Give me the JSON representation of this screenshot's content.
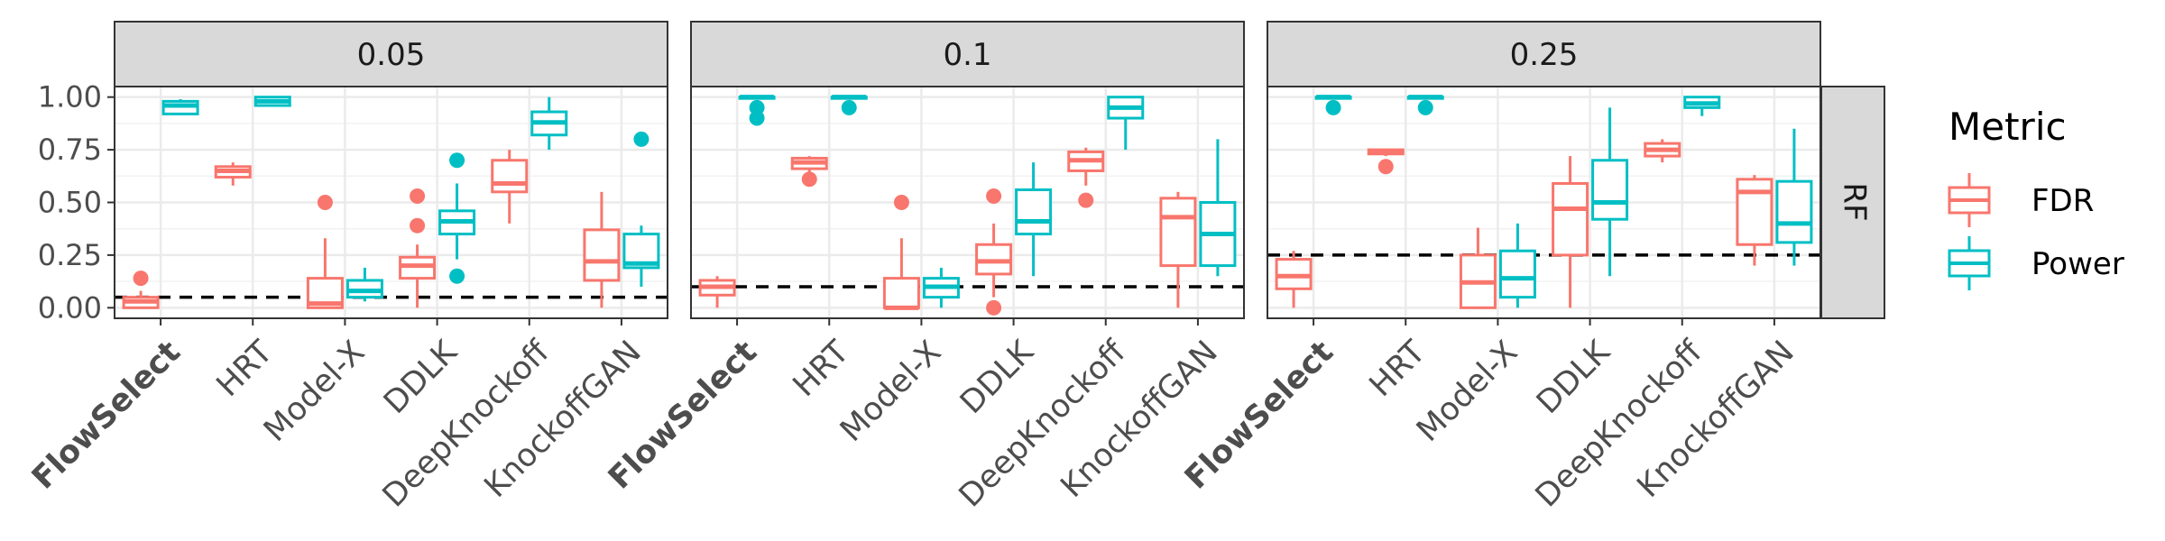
{
  "chart_data": {
    "type": "boxplot",
    "facet_columns": [
      "0.05",
      "0.1",
      "0.25"
    ],
    "facet_row": "RF",
    "categories": [
      "FlowSelect",
      "HRT",
      "Model-X",
      "DDLK",
      "DeepKnockoff",
      "KnockoffGAN"
    ],
    "bold_categories": [
      "FlowSelect"
    ],
    "ylim": [
      -0.05,
      1.05
    ],
    "yticks": [
      0.0,
      0.25,
      0.5,
      0.75,
      1.0
    ],
    "ytick_labels": [
      "0.00",
      "0.25",
      "0.50",
      "0.75",
      "1.00"
    ],
    "reference_lines": [
      0.05,
      0.1,
      0.25
    ],
    "reference_line_style": "dashed",
    "grid": true,
    "legend": {
      "title": "Metric",
      "position": "right",
      "entries": [
        {
          "label": "FDR",
          "color": "#F8766D"
        },
        {
          "label": "Power",
          "color": "#00BFC4"
        }
      ]
    },
    "colors": {
      "FDR": "#F8766D",
      "Power": "#00BFC4",
      "strip_fill": "#D9D9D9",
      "reference_line": "#000000"
    },
    "series": [
      {
        "facet": "0.05",
        "boxes": [
          {
            "category": "FlowSelect",
            "metric": "FDR",
            "min": 0.0,
            "q1": 0.0,
            "median": 0.03,
            "q3": 0.05,
            "max": 0.08,
            "outliers": [
              0.14
            ]
          },
          {
            "category": "FlowSelect",
            "metric": "Power",
            "min": 0.92,
            "q1": 0.92,
            "median": 0.96,
            "q3": 0.98,
            "max": 0.99,
            "outliers": []
          },
          {
            "category": "HRT",
            "metric": "FDR",
            "min": 0.58,
            "q1": 0.62,
            "median": 0.65,
            "q3": 0.67,
            "max": 0.69,
            "outliers": []
          },
          {
            "category": "HRT",
            "metric": "Power",
            "min": 0.96,
            "q1": 0.96,
            "median": 0.98,
            "q3": 1.0,
            "max": 1.0,
            "outliers": []
          },
          {
            "category": "Model-X",
            "metric": "FDR",
            "min": 0.0,
            "q1": 0.0,
            "median": 0.02,
            "q3": 0.14,
            "max": 0.33,
            "outliers": [
              0.5
            ]
          },
          {
            "category": "Model-X",
            "metric": "Power",
            "min": 0.03,
            "q1": 0.05,
            "median": 0.08,
            "q3": 0.13,
            "max": 0.19,
            "outliers": []
          },
          {
            "category": "DDLK",
            "metric": "FDR",
            "min": 0.0,
            "q1": 0.14,
            "median": 0.2,
            "q3": 0.24,
            "max": 0.3,
            "outliers": [
              0.39,
              0.53
            ]
          },
          {
            "category": "DDLK",
            "metric": "Power",
            "min": 0.23,
            "q1": 0.35,
            "median": 0.41,
            "q3": 0.46,
            "max": 0.59,
            "outliers": [
              0.15,
              0.7
            ]
          },
          {
            "category": "DeepKnockoff",
            "metric": "FDR",
            "min": 0.4,
            "q1": 0.55,
            "median": 0.59,
            "q3": 0.7,
            "max": 0.75,
            "outliers": []
          },
          {
            "category": "DeepKnockoff",
            "metric": "Power",
            "min": 0.75,
            "q1": 0.82,
            "median": 0.88,
            "q3": 0.93,
            "max": 1.0,
            "outliers": []
          },
          {
            "category": "KnockoffGAN",
            "metric": "FDR",
            "min": 0.0,
            "q1": 0.13,
            "median": 0.22,
            "q3": 0.37,
            "max": 0.55,
            "outliers": []
          },
          {
            "category": "KnockoffGAN",
            "metric": "Power",
            "min": 0.1,
            "q1": 0.19,
            "median": 0.21,
            "q3": 0.35,
            "max": 0.39,
            "outliers": [
              0.8
            ]
          }
        ]
      },
      {
        "facet": "0.1",
        "boxes": [
          {
            "category": "FlowSelect",
            "metric": "FDR",
            "min": 0.0,
            "q1": 0.06,
            "median": 0.1,
            "q3": 0.13,
            "max": 0.15,
            "outliers": []
          },
          {
            "category": "FlowSelect",
            "metric": "Power",
            "min": 1.0,
            "q1": 1.0,
            "median": 1.0,
            "q3": 1.0,
            "max": 1.0,
            "outliers": [
              0.9,
              0.95
            ]
          },
          {
            "category": "HRT",
            "metric": "FDR",
            "min": 0.64,
            "q1": 0.66,
            "median": 0.69,
            "q3": 0.71,
            "max": 0.72,
            "outliers": [
              0.61
            ]
          },
          {
            "category": "HRT",
            "metric": "Power",
            "min": 1.0,
            "q1": 1.0,
            "median": 1.0,
            "q3": 1.0,
            "max": 1.0,
            "outliers": [
              0.95
            ]
          },
          {
            "category": "Model-X",
            "metric": "FDR",
            "min": 0.0,
            "q1": 0.0,
            "median": 0.0,
            "q3": 0.14,
            "max": 0.33,
            "outliers": [
              0.5
            ]
          },
          {
            "category": "Model-X",
            "metric": "Power",
            "min": 0.0,
            "q1": 0.05,
            "median": 0.1,
            "q3": 0.14,
            "max": 0.19,
            "outliers": []
          },
          {
            "category": "DDLK",
            "metric": "FDR",
            "min": 0.05,
            "q1": 0.16,
            "median": 0.22,
            "q3": 0.3,
            "max": 0.4,
            "outliers": [
              0.0,
              0.53
            ]
          },
          {
            "category": "DDLK",
            "metric": "Power",
            "min": 0.15,
            "q1": 0.35,
            "median": 0.41,
            "q3": 0.56,
            "max": 0.69,
            "outliers": []
          },
          {
            "category": "DeepKnockoff",
            "metric": "FDR",
            "min": 0.58,
            "q1": 0.65,
            "median": 0.7,
            "q3": 0.74,
            "max": 0.76,
            "outliers": [
              0.51
            ]
          },
          {
            "category": "DeepKnockoff",
            "metric": "Power",
            "min": 0.75,
            "q1": 0.9,
            "median": 0.95,
            "q3": 1.0,
            "max": 1.0,
            "outliers": []
          },
          {
            "category": "KnockoffGAN",
            "metric": "FDR",
            "min": 0.0,
            "q1": 0.2,
            "median": 0.43,
            "q3": 0.52,
            "max": 0.55,
            "outliers": []
          },
          {
            "category": "KnockoffGAN",
            "metric": "Power",
            "min": 0.15,
            "q1": 0.2,
            "median": 0.35,
            "q3": 0.5,
            "max": 0.8,
            "outliers": []
          }
        ]
      },
      {
        "facet": "0.25",
        "boxes": [
          {
            "category": "FlowSelect",
            "metric": "FDR",
            "min": 0.0,
            "q1": 0.09,
            "median": 0.15,
            "q3": 0.23,
            "max": 0.27,
            "outliers": []
          },
          {
            "category": "FlowSelect",
            "metric": "Power",
            "min": 1.0,
            "q1": 1.0,
            "median": 1.0,
            "q3": 1.0,
            "max": 1.0,
            "outliers": [
              0.95
            ]
          },
          {
            "category": "HRT",
            "metric": "FDR",
            "min": 0.72,
            "q1": 0.73,
            "median": 0.74,
            "q3": 0.75,
            "max": 0.75,
            "outliers": [
              0.67
            ]
          },
          {
            "category": "HRT",
            "metric": "Power",
            "min": 1.0,
            "q1": 1.0,
            "median": 1.0,
            "q3": 1.0,
            "max": 1.0,
            "outliers": [
              0.95
            ]
          },
          {
            "category": "Model-X",
            "metric": "FDR",
            "min": 0.0,
            "q1": 0.0,
            "median": 0.12,
            "q3": 0.25,
            "max": 0.38,
            "outliers": []
          },
          {
            "category": "Model-X",
            "metric": "Power",
            "min": 0.0,
            "q1": 0.05,
            "median": 0.14,
            "q3": 0.27,
            "max": 0.4,
            "outliers": []
          },
          {
            "category": "DDLK",
            "metric": "FDR",
            "min": 0.0,
            "q1": 0.25,
            "median": 0.47,
            "q3": 0.59,
            "max": 0.72,
            "outliers": []
          },
          {
            "category": "DDLK",
            "metric": "Power",
            "min": 0.15,
            "q1": 0.42,
            "median": 0.5,
            "q3": 0.7,
            "max": 0.95,
            "outliers": []
          },
          {
            "category": "DeepKnockoff",
            "metric": "FDR",
            "min": 0.69,
            "q1": 0.72,
            "median": 0.75,
            "q3": 0.78,
            "max": 0.8,
            "outliers": []
          },
          {
            "category": "DeepKnockoff",
            "metric": "Power",
            "min": 0.91,
            "q1": 0.95,
            "median": 0.97,
            "q3": 1.0,
            "max": 1.0,
            "outliers": []
          },
          {
            "category": "KnockoffGAN",
            "metric": "FDR",
            "min": 0.2,
            "q1": 0.3,
            "median": 0.55,
            "q3": 0.61,
            "max": 0.63,
            "outliers": []
          },
          {
            "category": "KnockoffGAN",
            "metric": "Power",
            "min": 0.2,
            "q1": 0.31,
            "median": 0.4,
            "q3": 0.6,
            "max": 0.85,
            "outliers": []
          }
        ]
      }
    ]
  }
}
